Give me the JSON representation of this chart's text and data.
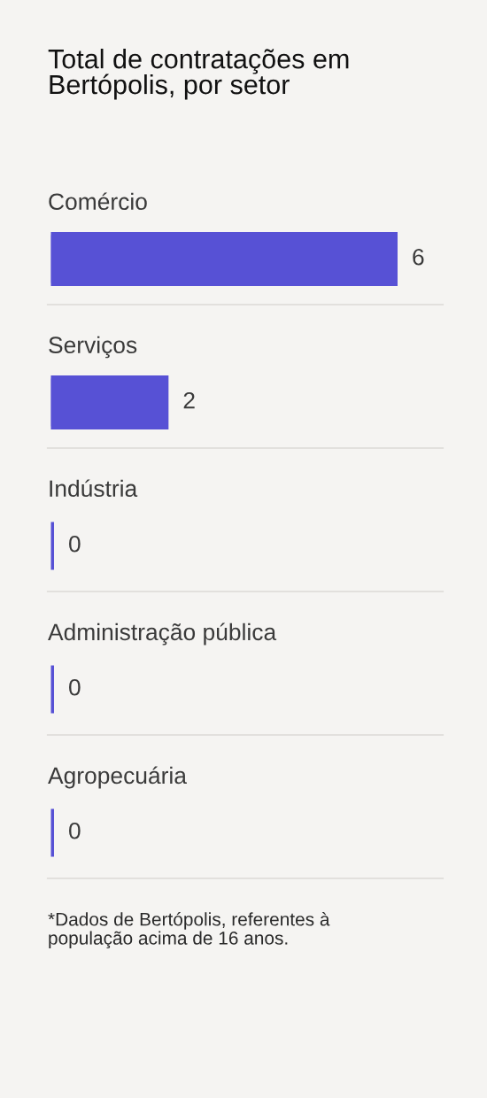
{
  "chart_data": {
    "type": "bar",
    "orientation": "horizontal",
    "title": "Total de contratações em\nBertópolis, por setor",
    "categories": [
      "Comércio",
      "Serviços",
      "Indústria",
      "Administração pública",
      "Agropecuária"
    ],
    "values": [
      6,
      2,
      0,
      0,
      0
    ],
    "color": "#5751d5",
    "data_labels": true,
    "grid": "y",
    "tick_labels": "y",
    "annotations": [
      "*Dados de Bertópolis, referentes à\npopulação acima de 16 anos."
    ]
  }
}
